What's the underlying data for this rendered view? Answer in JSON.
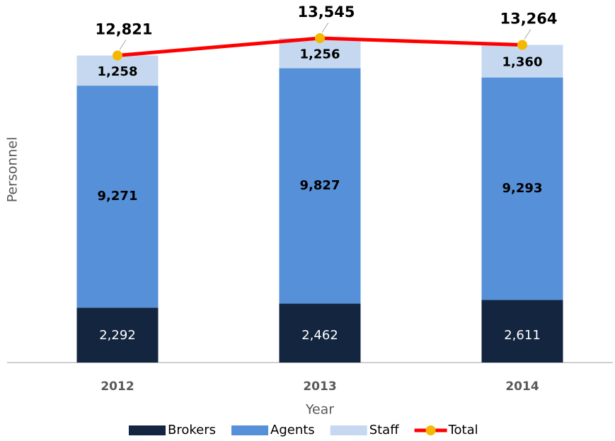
{
  "chart_data": {
    "type": "stacked-bar-line",
    "categories": [
      "2012",
      "2013",
      "2014"
    ],
    "xlabel": "Year",
    "ylabel": "Personnel",
    "series": [
      {
        "name": "Brokers",
        "color": "#13253f",
        "values": [
          2292,
          2462,
          2611
        ],
        "value_labels": [
          "2,292",
          "2,462",
          "2,611"
        ]
      },
      {
        "name": "Agents",
        "color": "#5590d8",
        "values": [
          9271,
          9827,
          9293
        ],
        "value_labels": [
          "9,271",
          "9,827",
          "9,293"
        ]
      },
      {
        "name": "Staff",
        "color": "#c5d8ef",
        "values": [
          1258,
          1256,
          1360
        ],
        "value_labels": [
          "1,258",
          "1,256",
          "1,360"
        ]
      },
      {
        "name": "Total",
        "type": "line",
        "color": "#ff0000",
        "marker_color": "#f5b800",
        "values": [
          12821,
          13545,
          13264
        ],
        "value_labels": [
          "12,821",
          "13,545",
          "13,264"
        ]
      }
    ]
  }
}
